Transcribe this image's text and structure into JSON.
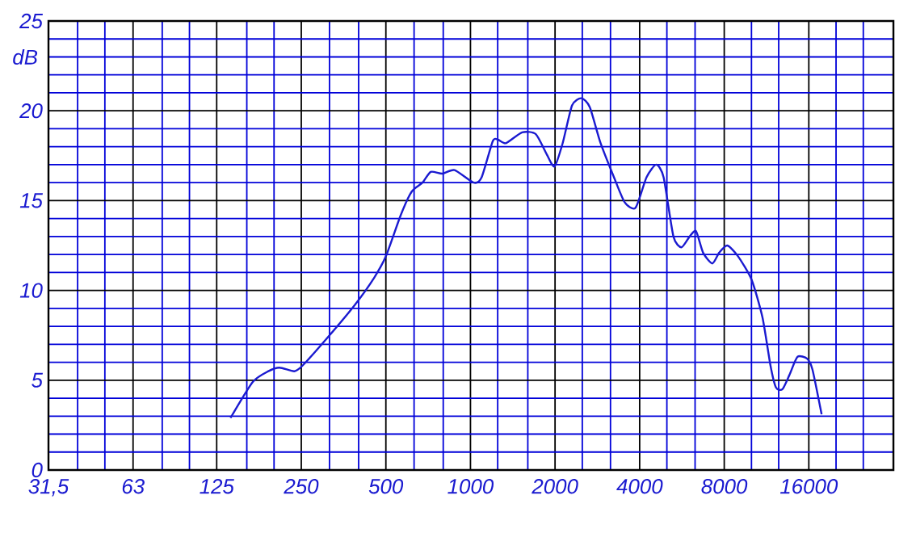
{
  "chart_data": {
    "type": "line",
    "ylabel": "dB",
    "log": "x",
    "grid": true,
    "marker": "none",
    "line_style": "solid",
    "xlim": [
      31.5,
      32000
    ],
    "ylim": [
      0,
      25
    ],
    "xticks": [
      {
        "value": 31.5,
        "label": "31,5"
      },
      {
        "value": 40,
        "label": null
      },
      {
        "value": 50,
        "label": null
      },
      63,
      {
        "value": 80,
        "label": null
      },
      {
        "value": 100,
        "label": null
      },
      125,
      {
        "value": 160,
        "label": null
      },
      {
        "value": 200,
        "label": null
      },
      250,
      {
        "value": 315,
        "label": null
      },
      {
        "value": 400,
        "label": null
      },
      500,
      {
        "value": 630,
        "label": null
      },
      {
        "value": 800,
        "label": null
      },
      1000,
      {
        "value": 1250,
        "label": null
      },
      {
        "value": 1600,
        "label": null
      },
      2000,
      {
        "value": 2500,
        "label": null
      },
      {
        "value": 3150,
        "label": null
      },
      4000,
      {
        "value": 5000,
        "label": null
      },
      {
        "value": 6300,
        "label": null
      },
      8000,
      {
        "value": 10000,
        "label": null
      },
      {
        "value": 12500,
        "label": null
      },
      16000,
      {
        "value": 20000,
        "label": null
      },
      {
        "value": 25000,
        "label": null
      }
    ],
    "yticks": [
      0,
      {
        "value": 1,
        "label": null
      },
      {
        "value": 2,
        "label": null
      },
      {
        "value": 3,
        "label": null
      },
      {
        "value": 4,
        "label": null
      },
      5,
      {
        "value": 6,
        "label": null
      },
      {
        "value": 7,
        "label": null
      },
      {
        "value": 8,
        "label": null
      },
      {
        "value": 9,
        "label": null
      },
      10,
      {
        "value": 11,
        "label": null
      },
      {
        "value": 12,
        "label": null
      },
      {
        "value": 13,
        "label": null
      },
      {
        "value": 14,
        "label": null
      },
      15,
      {
        "value": 16,
        "label": null
      },
      {
        "value": 17,
        "label": null
      },
      {
        "value": 18,
        "label": null
      },
      {
        "value": 19,
        "label": null
      },
      20,
      {
        "value": 21,
        "label": null
      },
      {
        "value": 22,
        "label": null
      },
      {
        "value": 23,
        "label": null
      },
      {
        "value": 24,
        "label": null
      },
      25
    ],
    "series": [
      {
        "color": "#1a1ad0",
        "x": [
          140,
          168,
          191,
          209,
          236,
          252,
          311,
          388,
          454,
          500,
          565,
          618,
          675,
          722,
          794,
          878,
          1027,
          1096,
          1200,
          1251,
          1338,
          1528,
          1708,
          1865,
          1991,
          2129,
          2299,
          2482,
          2659,
          2904,
          3241,
          3541,
          3868,
          4232,
          4580,
          4867,
          5276,
          5636,
          6026,
          6350,
          6728,
          7258,
          7675,
          8206,
          8956,
          10008,
          10943,
          11690,
          12222,
          12890,
          13656,
          14576,
          15780,
          16480,
          17770
        ],
        "values": [
          2.9,
          4.9,
          5.5,
          5.7,
          5.5,
          5.8,
          7.4,
          9.2,
          10.7,
          11.9,
          14.2,
          15.5,
          16.0,
          16.6,
          16.5,
          16.7,
          16.0,
          16.3,
          18.3,
          18.4,
          18.2,
          18.8,
          18.7,
          17.6,
          16.9,
          18.2,
          20.3,
          20.7,
          20.2,
          18.2,
          16.3,
          14.9,
          14.6,
          16.3,
          17.0,
          16.3,
          13.0,
          12.4,
          13.0,
          13.3,
          12.1,
          11.5,
          12.1,
          12.5,
          11.9,
          10.6,
          8.5,
          5.8,
          4.6,
          4.5,
          5.3,
          6.3,
          6.2,
          5.6,
          3.1
        ]
      }
    ]
  }
}
